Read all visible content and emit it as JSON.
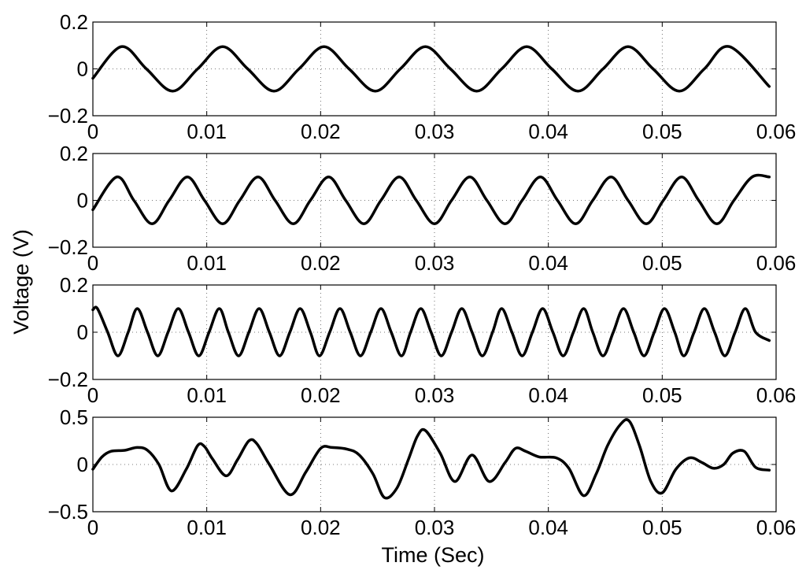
{
  "figure": {
    "xlabel": "Time (Sec)",
    "ylabel": "Voltage (V)"
  },
  "chart_data": [
    {
      "type": "line",
      "xlabel": "",
      "ylabel": "",
      "xlim": [
        0,
        0.06
      ],
      "ylim": [
        -0.2,
        0.2
      ],
      "xticks": [
        "0",
        "0.01",
        "0.02",
        "0.03",
        "0.04",
        "0.05",
        "0.06"
      ],
      "xtick_values": [
        0,
        0.01,
        0.02,
        0.03,
        0.04,
        0.05,
        0.06
      ],
      "yticks": [
        "0.2",
        "0",
        "−0.2"
      ],
      "ytick_values": [
        0.2,
        0,
        -0.2
      ],
      "grid": true,
      "series": [
        {
          "x": [
            0,
            0.0025,
            0.0047,
            0.007,
            0.0092,
            0.0114,
            0.0136,
            0.0159,
            0.0181,
            0.0203,
            0.0225,
            0.0248,
            0.027,
            0.0292,
            0.0314,
            0.0337,
            0.0359,
            0.0381,
            0.0403,
            0.0426,
            0.0448,
            0.047,
            0.0492,
            0.0515,
            0.0537,
            0.0559,
            0.0594
          ],
          "y": [
            -0.04,
            0.095,
            0.0,
            -0.095,
            0.0,
            0.095,
            0.0,
            -0.095,
            0.0,
            0.095,
            0.0,
            -0.095,
            0.0,
            0.095,
            0.0,
            -0.095,
            0.0,
            0.095,
            0.0,
            -0.095,
            0.0,
            0.095,
            0.0,
            -0.095,
            0.0,
            0.095,
            -0.075
          ]
        }
      ]
    },
    {
      "type": "line",
      "xlabel": "",
      "ylabel": "",
      "xlim": [
        0,
        0.06
      ],
      "ylim": [
        -0.2,
        0.2
      ],
      "xticks": [
        "0",
        "0.01",
        "0.02",
        "0.03",
        "0.04",
        "0.05",
        "0.06"
      ],
      "xtick_values": [
        0,
        0.01,
        0.02,
        0.03,
        0.04,
        0.05,
        0.06
      ],
      "yticks": [
        "0.2",
        "0",
        "−0.2"
      ],
      "ytick_values": [
        0.2,
        0,
        -0.2
      ],
      "grid": true,
      "series": [
        {
          "x": [
            0,
            0.0021,
            0.0036,
            0.0052,
            0.0067,
            0.0083,
            0.0098,
            0.0114,
            0.0129,
            0.0145,
            0.016,
            0.0176,
            0.0191,
            0.0207,
            0.0222,
            0.0238,
            0.0253,
            0.0269,
            0.0284,
            0.03,
            0.0315,
            0.0331,
            0.0346,
            0.0362,
            0.0377,
            0.0393,
            0.0408,
            0.0424,
            0.0439,
            0.0455,
            0.047,
            0.0486,
            0.0501,
            0.0517,
            0.0532,
            0.0548,
            0.0563,
            0.0579,
            0.0594
          ],
          "y": [
            -0.04,
            0.1,
            0.0,
            -0.1,
            0.0,
            0.1,
            0.0,
            -0.1,
            0.0,
            0.1,
            0.0,
            -0.1,
            0.0,
            0.1,
            0.0,
            -0.1,
            0.0,
            0.1,
            0.0,
            -0.1,
            0.0,
            0.1,
            0.0,
            -0.1,
            0.0,
            0.1,
            0.0,
            -0.1,
            0.0,
            0.1,
            0.0,
            -0.1,
            0.0,
            0.1,
            0.0,
            -0.1,
            0.0,
            0.1,
            0.1
          ]
        }
      ]
    },
    {
      "type": "line",
      "xlabel": "",
      "ylabel": "",
      "xlim": [
        0,
        0.06
      ],
      "ylim": [
        -0.2,
        0.2
      ],
      "xticks": [
        "0",
        "0.01",
        "0.02",
        "0.03",
        "0.04",
        "0.05",
        "0.06"
      ],
      "xtick_values": [
        0,
        0.01,
        0.02,
        0.03,
        0.04,
        0.05,
        0.06
      ],
      "yticks": [
        "0.2",
        "0",
        "−0.2"
      ],
      "ytick_values": [
        0.2,
        0,
        -0.2
      ],
      "grid": true,
      "series": [
        {
          "x": [
            0,
            0.0004,
            0.0013,
            0.0022,
            0.0031,
            0.0039,
            0.0048,
            0.0057,
            0.0066,
            0.0075,
            0.0084,
            0.0093,
            0.0102,
            0.0111,
            0.0119,
            0.0128,
            0.0137,
            0.0146,
            0.0155,
            0.0164,
            0.0173,
            0.0182,
            0.0191,
            0.0199,
            0.0208,
            0.0217,
            0.0226,
            0.0235,
            0.0244,
            0.0253,
            0.0262,
            0.0271,
            0.0279,
            0.0288,
            0.0297,
            0.0306,
            0.0315,
            0.0324,
            0.0333,
            0.0342,
            0.0351,
            0.0359,
            0.0368,
            0.0377,
            0.0386,
            0.0395,
            0.0404,
            0.0413,
            0.0422,
            0.0431,
            0.0439,
            0.0448,
            0.0457,
            0.0466,
            0.0475,
            0.0484,
            0.0493,
            0.0502,
            0.0511,
            0.0519,
            0.0528,
            0.0537,
            0.0546,
            0.0555,
            0.0564,
            0.0573,
            0.0582,
            0.0594
          ],
          "y": [
            0.095,
            0.1,
            0.0,
            -0.1,
            0.0,
            0.1,
            0.0,
            -0.1,
            0.0,
            0.1,
            0.0,
            -0.1,
            0.0,
            0.1,
            0.0,
            -0.1,
            0.0,
            0.1,
            0.0,
            -0.1,
            0.0,
            0.1,
            0.0,
            -0.1,
            0.0,
            0.1,
            0.0,
            -0.1,
            0.0,
            0.1,
            0.0,
            -0.1,
            0.0,
            0.1,
            0.0,
            -0.1,
            0.0,
            0.1,
            0.0,
            -0.1,
            0.0,
            0.1,
            0.0,
            -0.1,
            0.0,
            0.1,
            0.0,
            -0.1,
            0.0,
            0.1,
            0.0,
            -0.1,
            0.0,
            0.1,
            0.0,
            -0.1,
            0.0,
            0.1,
            0.0,
            -0.1,
            0.0,
            0.1,
            0.0,
            -0.1,
            0.0,
            0.1,
            0.0,
            -0.035
          ]
        }
      ]
    },
    {
      "type": "line",
      "xlabel": "",
      "ylabel": "",
      "xlim": [
        0,
        0.06
      ],
      "ylim": [
        -0.5,
        0.5
      ],
      "xticks": [
        "0",
        "0.01",
        "0.02",
        "0.03",
        "0.04",
        "0.05",
        "0.06"
      ],
      "xtick_values": [
        0,
        0.01,
        0.02,
        0.03,
        0.04,
        0.05,
        0.06
      ],
      "yticks": [
        "0.5",
        "0",
        "−0.5"
      ],
      "ytick_values": [
        0.5,
        0,
        -0.5
      ],
      "grid": true,
      "series": [
        {
          "x": [
            0,
            0.0008,
            0.0016,
            0.0028,
            0.0039,
            0.0048,
            0.0058,
            0.0069,
            0.0082,
            0.0092,
            0.0098,
            0.0105,
            0.0117,
            0.0127,
            0.0137,
            0.0144,
            0.0155,
            0.0173,
            0.0187,
            0.02,
            0.021,
            0.0224,
            0.0234,
            0.0246,
            0.0256,
            0.0267,
            0.0277,
            0.0285,
            0.0292,
            0.0305,
            0.0318,
            0.0333,
            0.0348,
            0.0362,
            0.0371,
            0.038,
            0.0392,
            0.0407,
            0.0418,
            0.0431,
            0.0442,
            0.0452,
            0.0463,
            0.0471,
            0.048,
            0.049,
            0.05,
            0.0512,
            0.0524,
            0.0535,
            0.0545,
            0.0554,
            0.0562,
            0.0572,
            0.0582,
            0.0594
          ],
          "y": [
            -0.05,
            0.08,
            0.14,
            0.15,
            0.18,
            0.15,
            0.0,
            -0.28,
            -0.05,
            0.2,
            0.19,
            0.06,
            -0.12,
            0.05,
            0.25,
            0.22,
            0.0,
            -0.32,
            -0.08,
            0.17,
            0.18,
            0.16,
            0.1,
            -0.1,
            -0.35,
            -0.25,
            0.05,
            0.3,
            0.36,
            0.12,
            -0.18,
            0.1,
            -0.18,
            0.02,
            0.17,
            0.14,
            0.08,
            0.07,
            -0.04,
            -0.33,
            -0.1,
            0.2,
            0.42,
            0.46,
            0.2,
            -0.18,
            -0.3,
            -0.05,
            0.07,
            0.02,
            -0.04,
            0.0,
            0.12,
            0.14,
            -0.03,
            -0.06
          ]
        }
      ]
    }
  ]
}
